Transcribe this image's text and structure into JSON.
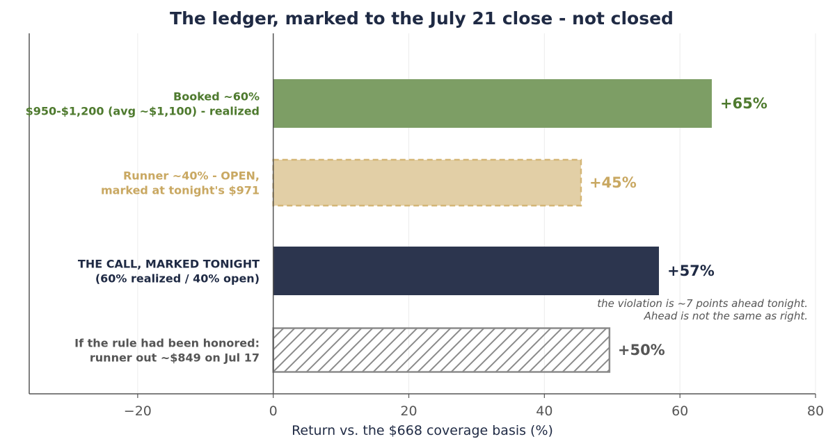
{
  "chart_data": {
    "type": "bar",
    "orientation": "horizontal",
    "title": "The ledger, marked to the July 21 close - not closed",
    "xlabel": "Return vs. the $668 coverage basis (%)",
    "xlim": [
      -36,
      80
    ],
    "xticks": [
      {
        "value": -20,
        "label": "−20"
      },
      {
        "value": 0,
        "label": "0"
      },
      {
        "value": 20,
        "label": "20"
      },
      {
        "value": 40,
        "label": "40"
      },
      {
        "value": 60,
        "label": "60"
      },
      {
        "value": 80,
        "label": "80"
      }
    ],
    "grid": "vertical",
    "bars": [
      {
        "label_lines": [
          "Booked ~60%",
          "$950-$1,200 (avg ~$1,100) - realized"
        ],
        "value": 64.7,
        "value_label": "+65%",
        "style": "solid",
        "fill": "#7d9e65",
        "label_color": "#4e7a2e"
      },
      {
        "label_lines": [
          "Runner ~40% - OPEN,",
          "marked at tonight's $971"
        ],
        "value": 45.4,
        "value_label": "+45%",
        "style": "dashed",
        "fill": "#e2cfa6",
        "label_color": "#c9a862"
      },
      {
        "label_lines": [
          "THE CALL, MARKED TONIGHT",
          "(60% realized / 40% open)"
        ],
        "value": 56.9,
        "value_label": "+57%",
        "style": "solid",
        "fill": "#2c354e",
        "label_color": "#1f2a44"
      },
      {
        "label_lines": [
          "If the rule had been honored:",
          "runner out ~$849 on Jul 17"
        ],
        "value": 49.6,
        "value_label": "+50%",
        "style": "hatched",
        "fill": "#ffffff",
        "label_color": "#555555"
      }
    ],
    "annotation": {
      "lines": [
        "the violation is ~7 points ahead tonight.",
        "Ahead is not the same as right."
      ]
    }
  }
}
